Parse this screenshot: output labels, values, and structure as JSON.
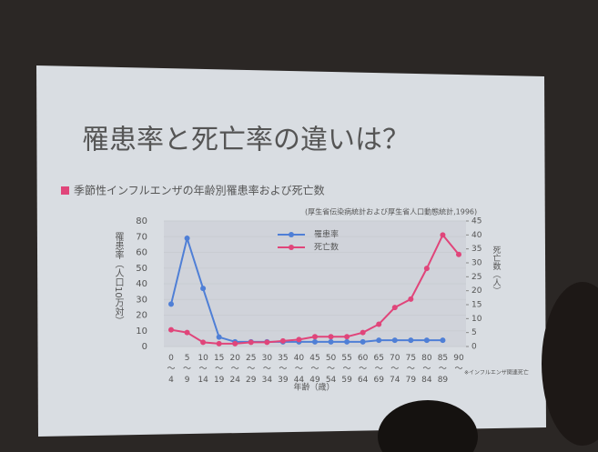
{
  "chart_data": {
    "type": "line",
    "title": "罹患率と死亡率の違いは？",
    "subtitle": "季節性インフルエンザの年齢別罹患率および死亡数",
    "source": "(厚生省伝染病統計および厚生省人口動態統計,1996)",
    "note": "※インフルエンザ関連死亡",
    "x_label": "年齢（歳）",
    "y_label": "罹患率（人口10万対）",
    "y2_label": "死亡数（人）",
    "categories": [
      "0〜4",
      "5〜9",
      "10〜14",
      "15〜19",
      "20〜24",
      "25〜29",
      "30〜34",
      "35〜39",
      "40〜44",
      "45〜49",
      "50〜54",
      "55〜59",
      "60〜64",
      "65〜69",
      "70〜74",
      "75〜79",
      "80〜84",
      "85〜89",
      "90〜"
    ],
    "series": [
      {
        "name": "罹患率",
        "color": "#4f7fd6",
        "axis": "y",
        "values": [
          27,
          69,
          37,
          6,
          3,
          3,
          3,
          3,
          3,
          3,
          3,
          3,
          3,
          4,
          4,
          4,
          4,
          4,
          null
        ]
      },
      {
        "name": "死亡数",
        "color": "#e0457a",
        "axis": "y2",
        "values": [
          6,
          5,
          1.5,
          1,
          1,
          1.5,
          1.5,
          2,
          2.5,
          3.5,
          3.5,
          3.5,
          5,
          8,
          14,
          17,
          28,
          40,
          33
        ]
      }
    ],
    "ylim": [
      0,
      80
    ],
    "yticks": [
      0,
      10,
      20,
      30,
      40,
      50,
      60,
      70,
      80
    ],
    "y2lim": [
      0,
      45
    ],
    "y2ticks": [
      0,
      5,
      10,
      15,
      20,
      25,
      30,
      35,
      40,
      45
    ],
    "grid": true,
    "legend": "top"
  }
}
